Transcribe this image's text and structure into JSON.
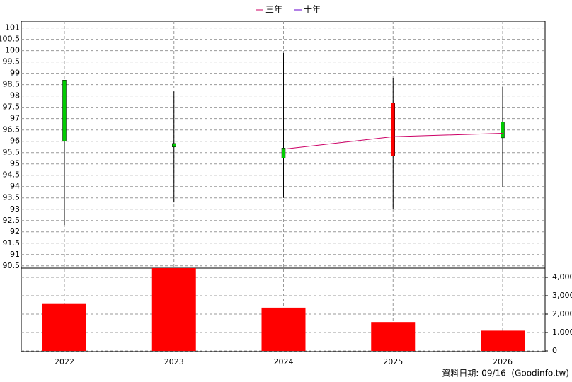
{
  "chart_data": {
    "type": "candlestick",
    "categories": [
      "2022",
      "2023",
      "2024",
      "2025",
      "2026"
    ],
    "open": [
      98.7,
      95.9,
      95.7,
      95.35,
      96.85
    ],
    "high": [
      98.7,
      98.2,
      99.9,
      98.8,
      98.4
    ],
    "low": [
      92.3,
      93.3,
      93.5,
      93.0,
      94.0
    ],
    "close": [
      96.0,
      95.75,
      95.25,
      97.7,
      96.15
    ],
    "up_color": "#ff0000",
    "down_color": "#00cc00",
    "series": [
      {
        "name": "三年",
        "color": "#cc0066",
        "values": [
          null,
          null,
          95.65,
          96.2,
          96.35
        ]
      },
      {
        "name": "十年",
        "color": "#6600cc",
        "values": [
          null,
          null,
          null,
          null,
          null
        ]
      }
    ],
    "ylim": [
      90.4,
      101.3
    ],
    "yticks": [
      90.5,
      91,
      91.5,
      92,
      92.5,
      93,
      93.5,
      94,
      94.5,
      95,
      95.5,
      96,
      96.5,
      97,
      97.5,
      98,
      98.5,
      99,
      99.5,
      100,
      100.5,
      101
    ],
    "volume": {
      "color": "#ff0000",
      "values": [
        2550,
        4500,
        2350,
        1570,
        1100
      ],
      "axis": "y2"
    },
    "y2lim": [
      0,
      4500
    ],
    "y2ticks": [
      0,
      {
        "value": 1000,
        "label": "1,000"
      },
      {
        "value": 2000,
        "label": "2,000"
      },
      {
        "value": 3000,
        "label": "3,000"
      },
      {
        "value": 4000,
        "label": "4,000"
      }
    ],
    "grid": true,
    "source": "資料日期: 09/16  (Goodinfo.tw)"
  }
}
